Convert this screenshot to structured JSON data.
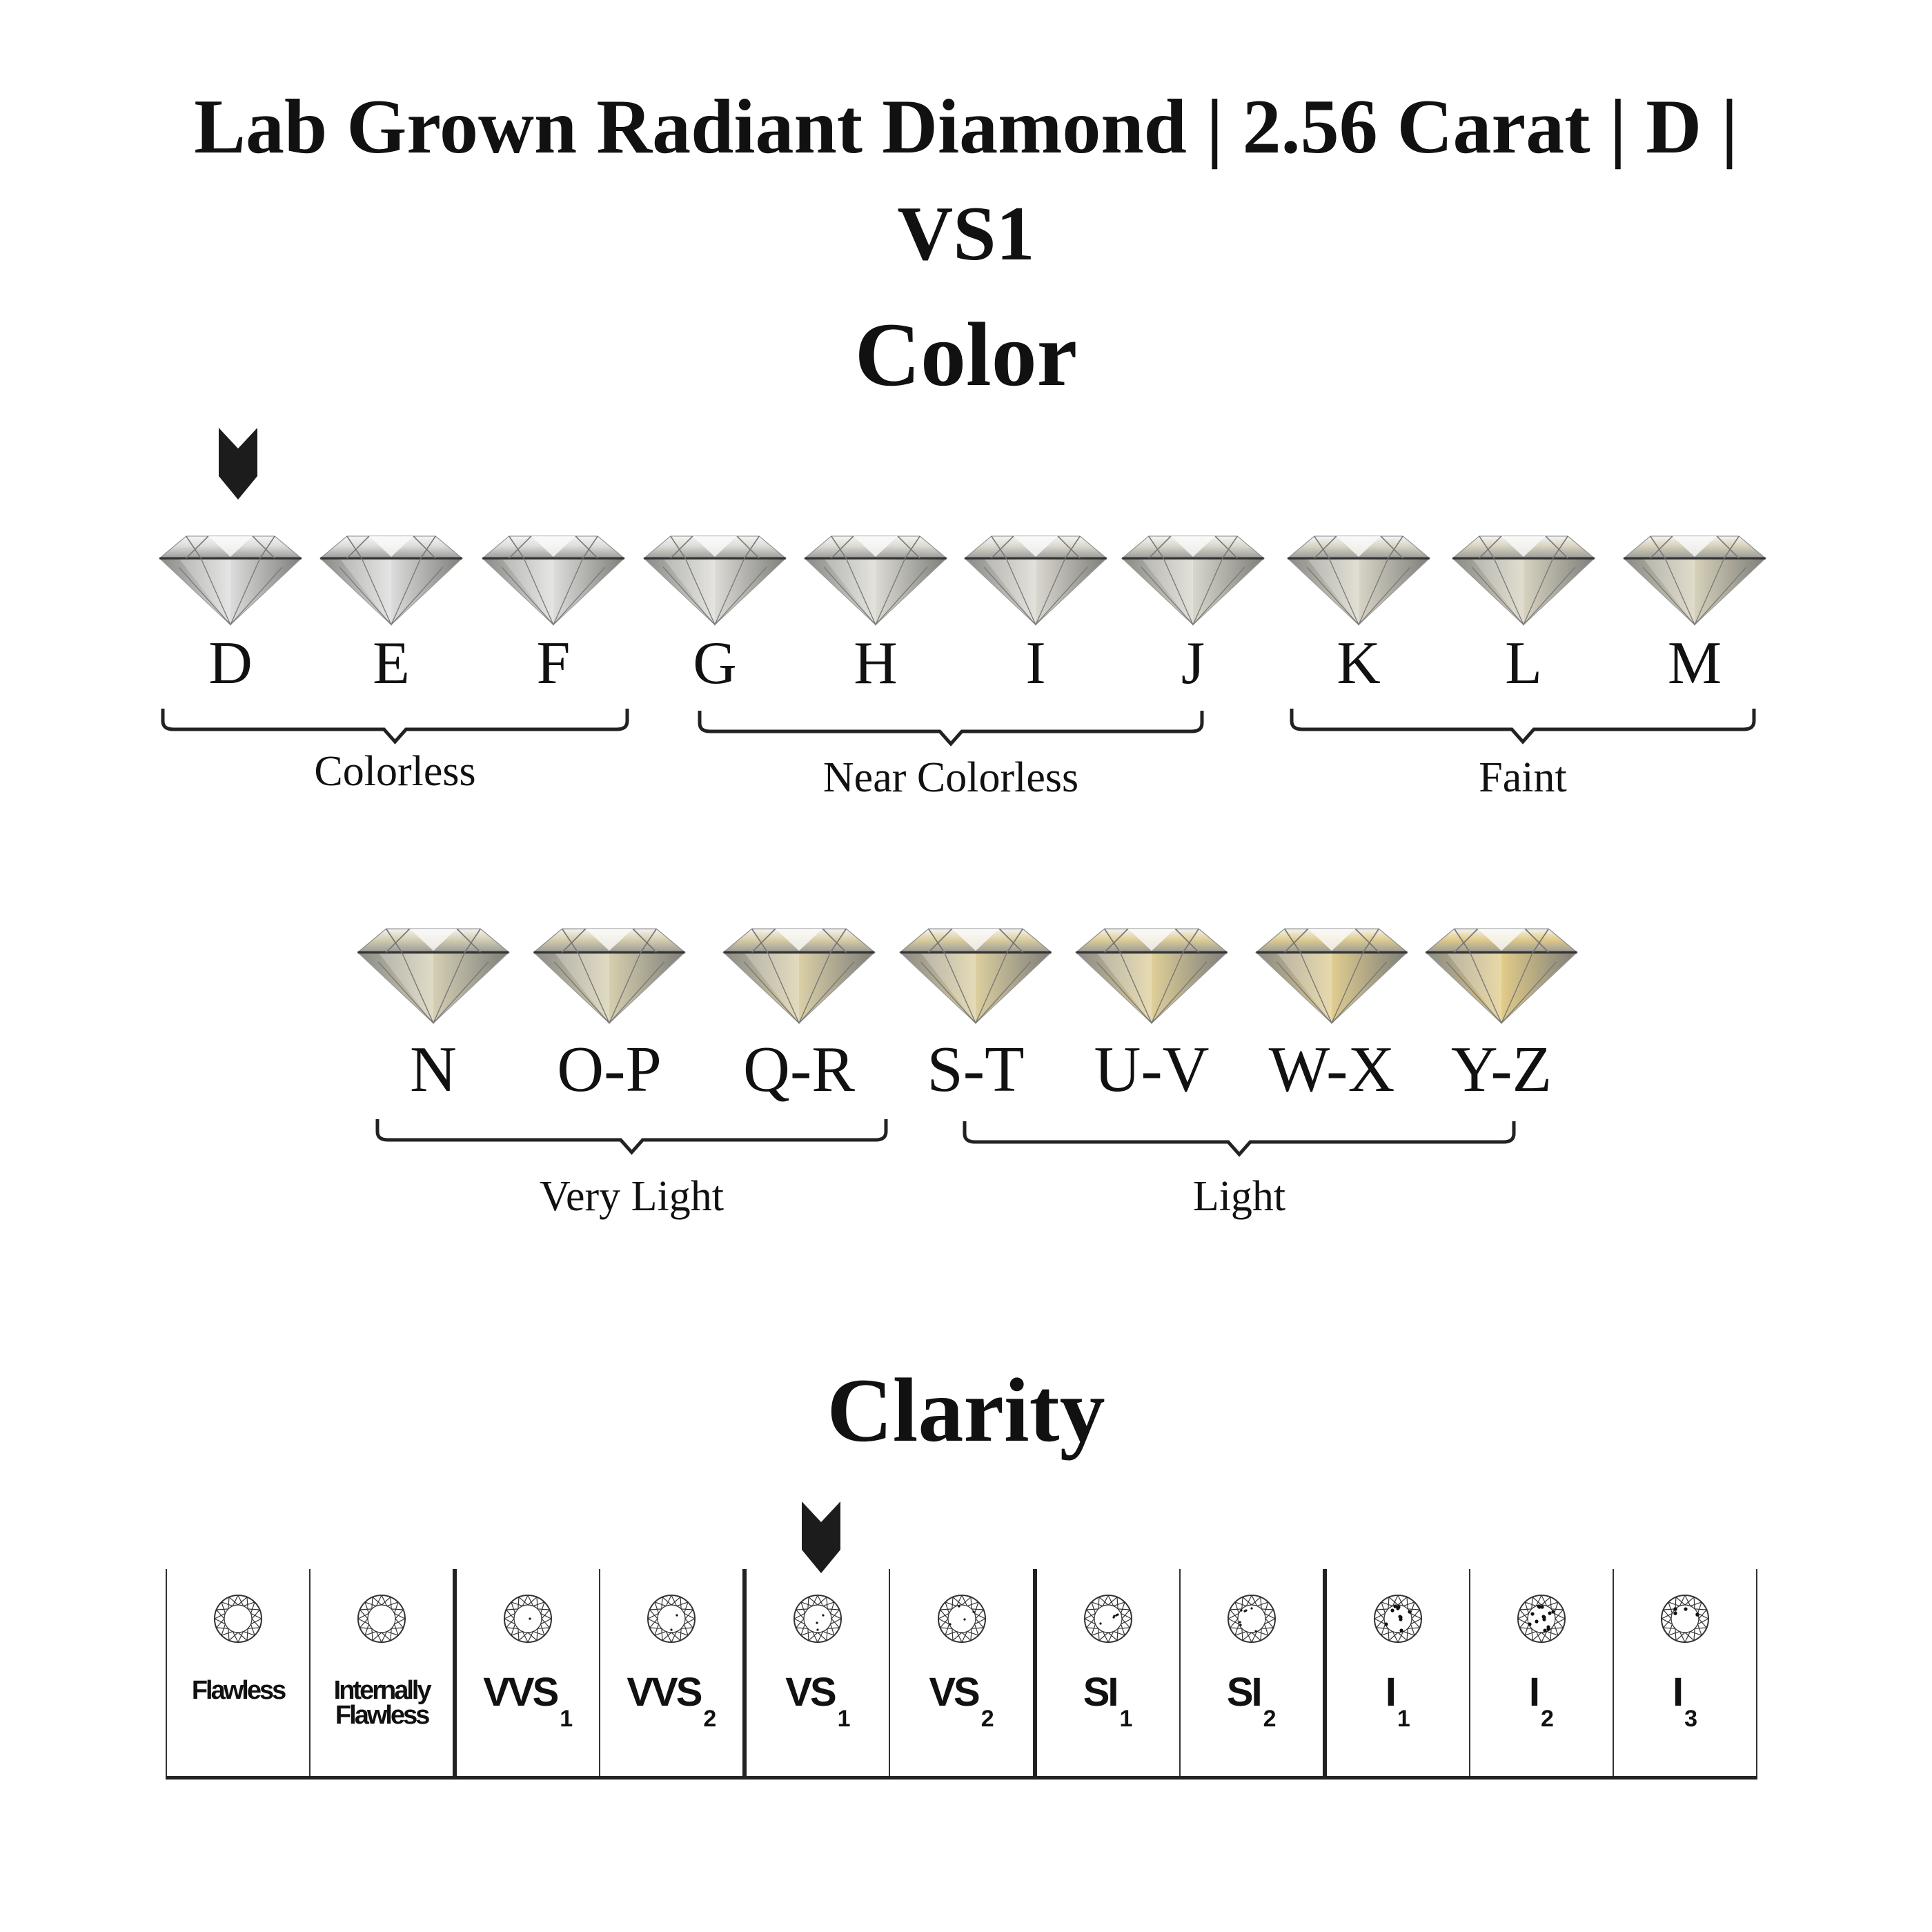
{
  "header": {
    "title_line1": "Lab Grown Radiant Diamond | 2.56 Carat | D |",
    "title_line2": "VS1"
  },
  "color_section": {
    "title": "Color",
    "selected": "D",
    "grades_row1": [
      {
        "label": "D",
        "tint": "#dcdcdc"
      },
      {
        "label": "E",
        "tint": "#dcdcdc"
      },
      {
        "label": "F",
        "tint": "#dddddb"
      },
      {
        "label": "G",
        "tint": "#dcdbd6"
      },
      {
        "label": "H",
        "tint": "#dbdad3"
      },
      {
        "label": "I",
        "tint": "#dad8cf"
      },
      {
        "label": "J",
        "tint": "#d9d7cc"
      },
      {
        "label": "K",
        "tint": "#d8d5c6"
      },
      {
        "label": "L",
        "tint": "#d7d3c0"
      },
      {
        "label": "M",
        "tint": "#d6d1ba"
      }
    ],
    "grades_row2": [
      {
        "label": "N",
        "tint": "#d4cfb3"
      },
      {
        "label": "O-P",
        "tint": "#d6cfae"
      },
      {
        "label": "Q-R",
        "tint": "#dacfa6"
      },
      {
        "label": "S-T",
        "tint": "#dccf9f"
      },
      {
        "label": "U-V",
        "tint": "#dfcf98"
      },
      {
        "label": "W-X",
        "tint": "#e0cd90"
      },
      {
        "label": "Y-Z",
        "tint": "#e2cc88"
      }
    ],
    "groups": [
      {
        "label": "Colorless"
      },
      {
        "label": "Near Colorless"
      },
      {
        "label": "Faint"
      },
      {
        "label": "Very Light"
      },
      {
        "label": "Light"
      }
    ]
  },
  "clarity_section": {
    "title": "Clarity",
    "selected": "VS1",
    "grades": [
      {
        "label": "Flawless",
        "sub": "",
        "inclusions": 0
      },
      {
        "label": "Internally Flawless",
        "sub": "",
        "inclusions": 0
      },
      {
        "label": "VVS",
        "sub": "1",
        "inclusions": 1
      },
      {
        "label": "VVS",
        "sub": "2",
        "inclusions": 2
      },
      {
        "label": "VS",
        "sub": "1",
        "inclusions": 3
      },
      {
        "label": "VS",
        "sub": "2",
        "inclusions": 4
      },
      {
        "label": "SI",
        "sub": "1",
        "inclusions": 5
      },
      {
        "label": "SI",
        "sub": "2",
        "inclusions": 7
      },
      {
        "label": "I",
        "sub": "1",
        "inclusions": 10
      },
      {
        "label": "I",
        "sub": "2",
        "inclusions": 14
      },
      {
        "label": "I",
        "sub": "3",
        "inclusions": 20
      }
    ]
  },
  "colors": {
    "ink": "#1a1a1a",
    "arrow": "#1c1c1c"
  }
}
